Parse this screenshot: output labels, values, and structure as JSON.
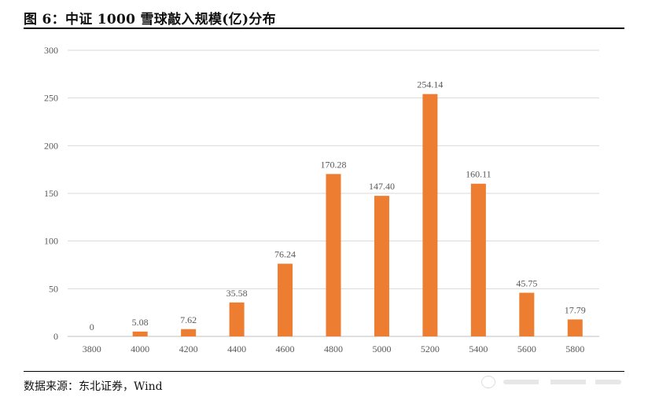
{
  "figure": {
    "title": "图 6：中证 1000 雪球敲入规模(亿)分布",
    "source": "数据来源：东北证券，Wind"
  },
  "colors": {
    "bar": "#ED7D31",
    "grid": "#D9D9D9",
    "axis": "#BFBFBF",
    "tick_text": "#595959"
  },
  "chart_data": {
    "type": "bar",
    "title": "",
    "xlabel": "",
    "ylabel": "",
    "categories": [
      "3800",
      "4000",
      "4200",
      "4400",
      "4600",
      "4800",
      "5000",
      "5200",
      "5400",
      "5600",
      "5800"
    ],
    "values": [
      0,
      5.08,
      7.62,
      35.58,
      76.24,
      170.28,
      147.4,
      254.14,
      160.11,
      45.75,
      17.79
    ],
    "value_labels": [
      "0",
      "5.08",
      "7.62",
      "35.58",
      "76.24",
      "170.28",
      "147.40",
      "254.14",
      "160.11",
      "45.75",
      "17.79"
    ],
    "ylim": [
      0,
      300
    ],
    "yticks": [
      "0",
      "50",
      "100",
      "150",
      "200",
      "250",
      "300"
    ],
    "grid": true,
    "legend": "none"
  },
  "icons": {
    "watermark": "wechat-watermark-icon"
  }
}
